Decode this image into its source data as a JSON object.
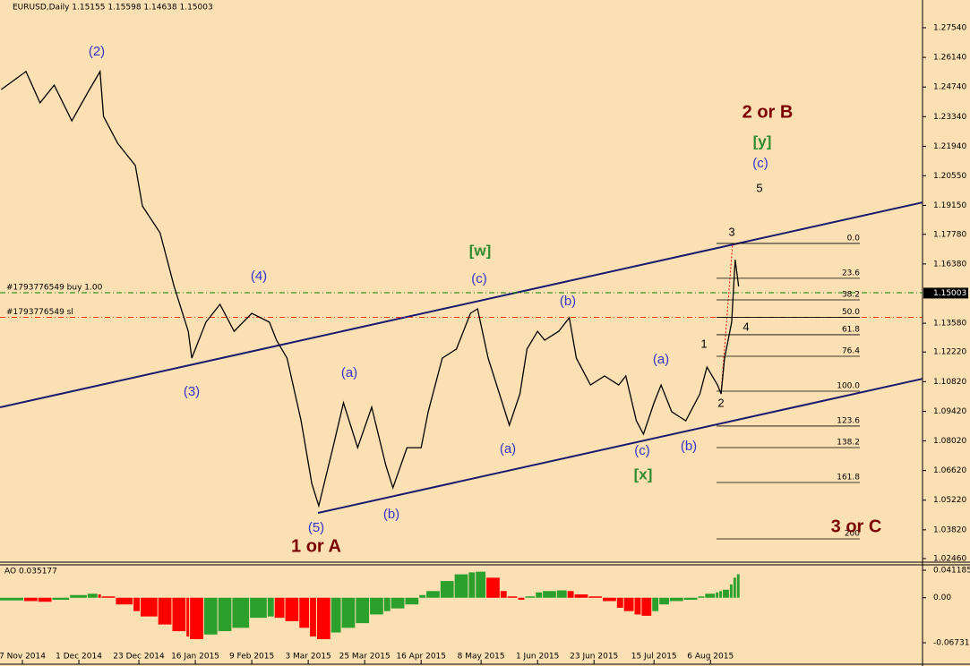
{
  "chart_data": {
    "type": "line",
    "title": "EURUSD,Daily  1.15155 1.15598 1.14638 1.15003",
    "price_color": "#000000",
    "x": [
      -6,
      1,
      5,
      9,
      14,
      19,
      22,
      23,
      27,
      32,
      34,
      39,
      43,
      47,
      48,
      52,
      56,
      60,
      65,
      70,
      72,
      75,
      79,
      82,
      84,
      88,
      91,
      95,
      99,
      103,
      105,
      109,
      113,
      115,
      119,
      123,
      127,
      129,
      132,
      136,
      138,
      141,
      143,
      146,
      148,
      152,
      155,
      157,
      161,
      165,
      169,
      171,
      174,
      176,
      179,
      181,
      184,
      188,
      192,
      194,
      197,
      198,
      199,
      201,
      202,
      203
    ],
    "series": [
      {
        "name": "EURUSD",
        "values": [
          1.2462,
          1.2547,
          1.2399,
          1.2483,
          1.2314,
          1.2462,
          1.2547,
          1.2335,
          1.2208,
          1.2103,
          1.1912,
          1.1785,
          1.1532,
          1.132,
          1.1193,
          1.1363,
          1.1447,
          1.132,
          1.1405,
          1.1363,
          1.1278,
          1.1193,
          1.0897,
          1.0601,
          1.0495,
          1.077,
          1.0982,
          1.077,
          1.0961,
          1.0686,
          1.058,
          1.077,
          1.077,
          1.094,
          1.1193,
          1.1236,
          1.1405,
          1.1426,
          1.1193,
          1.0982,
          1.0876,
          1.1024,
          1.1236,
          1.132,
          1.1278,
          1.132,
          1.1384,
          1.1193,
          1.1066,
          1.1109,
          1.1066,
          1.1109,
          1.0897,
          1.0834,
          1.0982,
          1.1066,
          1.094,
          1.0897,
          1.1024,
          1.1151,
          1.1066,
          1.1024,
          1.1193,
          1.1363,
          1.1658,
          1.1532
        ]
      }
    ],
    "xlim": [
      -6.35,
      255.1
    ],
    "xticks": [
      {
        "value": 0,
        "label": "7 Nov 2014"
      },
      {
        "value": 16,
        "label": "1 Dec 2014"
      },
      {
        "value": 33,
        "label": "23 Dec 2014"
      },
      {
        "value": 49,
        "label": "16 Jan 2015"
      },
      {
        "value": 65,
        "label": "9 Feb 2015"
      },
      {
        "value": 81,
        "label": "3 Mar 2015"
      },
      {
        "value": 97,
        "label": "25 Mar 2015"
      },
      {
        "value": 113,
        "label": "16 Apr 2015"
      },
      {
        "value": 130,
        "label": "8 May 2015"
      },
      {
        "value": 146,
        "label": "1 Jun 2015"
      },
      {
        "value": 162,
        "label": "23 Jun 2015"
      },
      {
        "value": 179,
        "label": "15 Jul 2015"
      },
      {
        "value": 195,
        "label": "6 Aug 2015"
      }
    ],
    "ylim": [
      1.02291,
      1.28851
    ],
    "yticks": [
      {
        "value": 1.2754,
        "label": "1.27540"
      },
      {
        "value": 1.2614,
        "label": "1.26140"
      },
      {
        "value": 1.2474,
        "label": "1.24740"
      },
      {
        "value": 1.2334,
        "label": "1.23340"
      },
      {
        "value": 1.2194,
        "label": "1.21940"
      },
      {
        "value": 1.2055,
        "label": "1.20550"
      },
      {
        "value": 1.1915,
        "label": "1.19150"
      },
      {
        "value": 1.1778,
        "label": "1.17780"
      },
      {
        "value": 1.1638,
        "label": "1.16380"
      },
      {
        "value": 1.1358,
        "label": "1.13580"
      },
      {
        "value": 1.1222,
        "label": "1.12220"
      },
      {
        "value": 1.1082,
        "label": "1.10820"
      },
      {
        "value": 1.0942,
        "label": "1.09420"
      },
      {
        "value": 1.0802,
        "label": "1.08020"
      },
      {
        "value": 1.0662,
        "label": "1.06620"
      },
      {
        "value": 1.0522,
        "label": "1.05220"
      },
      {
        "value": 1.0382,
        "label": "1.03820"
      },
      {
        "value": 1.0246,
        "label": "1.02460"
      }
    ],
    "current_price": {
      "value": 1.15003,
      "label": "1.15003"
    },
    "price_lines": [
      {
        "label": "#1793776549 buy 1.00",
        "value": 1.1502,
        "color": "#008000"
      },
      {
        "label": "#1793776549 sl",
        "value": 1.1386,
        "color": "#ff3300"
      }
    ],
    "fib_range": [
      1.1735,
      1.1037
    ],
    "fib_levels": [
      {
        "value": 0,
        "label": "0.0"
      },
      23.6,
      38.2,
      {
        "value": 50,
        "label": "50.0"
      },
      61.8,
      76.4,
      {
        "value": 100,
        "label": "100.0"
      },
      123.6,
      138.2,
      161.8,
      200
    ],
    "annotations": [
      "(2)",
      "(4)",
      "(3)",
      "(5)",
      "(b)",
      "(a)",
      "(a)",
      "(c)",
      "(b)",
      "[w]",
      "(c)",
      "(a)",
      "(b)",
      "[x]",
      "1",
      "2",
      "3",
      "4",
      "5",
      "(c)",
      "[y]",
      "2 or B",
      "1 or A",
      "3 or C"
    ],
    "indicator": {
      "label": "AO 0.035177",
      "up_color": "#2ca02c",
      "down_color": "#ff0000",
      "values": [
        -0.004,
        -0.005,
        -0.006,
        -0.003,
        0.004,
        0.006,
        0.005,
        0.002,
        -0.01,
        -0.02,
        -0.028,
        -0.04,
        -0.05,
        -0.058,
        -0.062,
        -0.055,
        -0.05,
        -0.045,
        -0.03,
        -0.028,
        -0.03,
        -0.035,
        -0.045,
        -0.058,
        -0.062,
        -0.052,
        -0.045,
        -0.038,
        -0.025,
        -0.02,
        -0.016,
        -0.01,
        0.004,
        0.01,
        0.025,
        0.035,
        0.038,
        0.039,
        0.03,
        0.01,
        0.002,
        -0.003,
        0.002,
        0.008,
        0.01,
        0.011,
        0.01,
        0.005,
        0.002,
        -0.005,
        -0.015,
        -0.02,
        -0.025,
        -0.027,
        -0.02,
        -0.01,
        -0.005,
        -0.003,
        0.002,
        0.006,
        0.008,
        0.01,
        0.012,
        0.02,
        0.03,
        0.035177
      ],
      "ylim": [
        -0.09678,
        0.04788
      ],
      "yticks": [
        {
          "value": 0.041185,
          "label": "0.041185"
        },
        {
          "value": 0,
          "label": "0.00"
        },
        {
          "value": -0.06731,
          "label": "-0.06731"
        }
      ]
    }
  }
}
